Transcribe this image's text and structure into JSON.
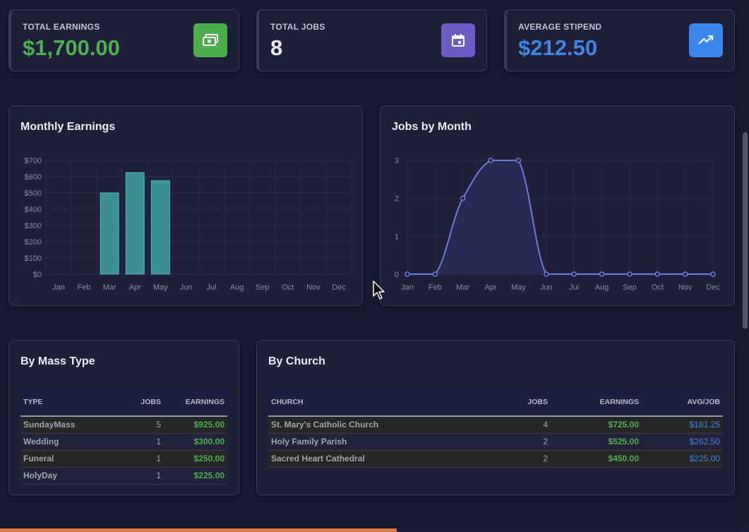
{
  "stats": {
    "total_earnings": {
      "label": "TOTAL EARNINGS",
      "value": "$1,700.00",
      "color": "#4cb050",
      "icon": "money-icon",
      "icon_bg": "#4cae4f"
    },
    "total_jobs": {
      "label": "TOTAL JOBS",
      "value": "8",
      "color": "#ececf6",
      "icon": "calendar-icon",
      "icon_bg": "#6d5cc4"
    },
    "average_stipend": {
      "label": "AVERAGE STIPEND",
      "value": "$212.50",
      "color": "#3f86e0",
      "icon": "trending-up-icon",
      "icon_bg": "#3a86ec"
    }
  },
  "monthly_earnings": {
    "title": "Monthly Earnings",
    "chart_data": {
      "type": "bar",
      "categories": [
        "Jan",
        "Feb",
        "Mar",
        "Apr",
        "May",
        "Jun",
        "Jul",
        "Aug",
        "Sep",
        "Oct",
        "Nov",
        "Dec"
      ],
      "values": [
        0,
        0,
        500,
        625,
        575,
        0,
        0,
        0,
        0,
        0,
        0,
        0
      ],
      "ylim": [
        0,
        700
      ],
      "yticks": [
        "$0",
        "$100",
        "$200",
        "$300",
        "$400",
        "$500",
        "$600",
        "$700"
      ],
      "bar_color": "#3c8f94",
      "bar_border": "#4fb5bb",
      "grid": true
    }
  },
  "jobs_by_month": {
    "title": "Jobs by Month",
    "chart_data": {
      "type": "line",
      "categories": [
        "Jan",
        "Feb",
        "Mar",
        "Apr",
        "May",
        "Jun",
        "Jul",
        "Aug",
        "Sep",
        "Oct",
        "Nov",
        "Dec"
      ],
      "values": [
        0,
        0,
        2,
        3,
        3,
        0,
        0,
        0,
        0,
        0,
        0,
        0
      ],
      "ylim": [
        0,
        3
      ],
      "yticks": [
        "0",
        "1",
        "2",
        "3"
      ],
      "line_color": "#6b7ddc",
      "fill_color": "#2a2c5a",
      "grid": true
    }
  },
  "by_mass_type": {
    "title": "By Mass Type",
    "columns": [
      "TYPE",
      "JOBS",
      "EARNINGS"
    ],
    "rows": [
      {
        "type": "SundayMass",
        "jobs": "5",
        "earnings": "$925.00"
      },
      {
        "type": "Wedding",
        "jobs": "1",
        "earnings": "$300.00"
      },
      {
        "type": "Funeral",
        "jobs": "1",
        "earnings": "$250.00"
      },
      {
        "type": "HolyDay",
        "jobs": "1",
        "earnings": "$225.00"
      }
    ]
  },
  "by_church": {
    "title": "By Church",
    "columns": [
      "CHURCH",
      "JOBS",
      "EARNINGS",
      "AVG/JOB"
    ],
    "rows": [
      {
        "church": "St. Mary's Catholic Church",
        "jobs": "4",
        "earnings": "$725.00",
        "avg": "$181.25"
      },
      {
        "church": "Holy Family Parish",
        "jobs": "2",
        "earnings": "$525.00",
        "avg": "$262.50"
      },
      {
        "church": "Sacred Heart Cathedral",
        "jobs": "2",
        "earnings": "$450.00",
        "avg": "$225.00"
      }
    ]
  },
  "progress": {
    "fraction": 0.53,
    "color": "#e07848"
  }
}
